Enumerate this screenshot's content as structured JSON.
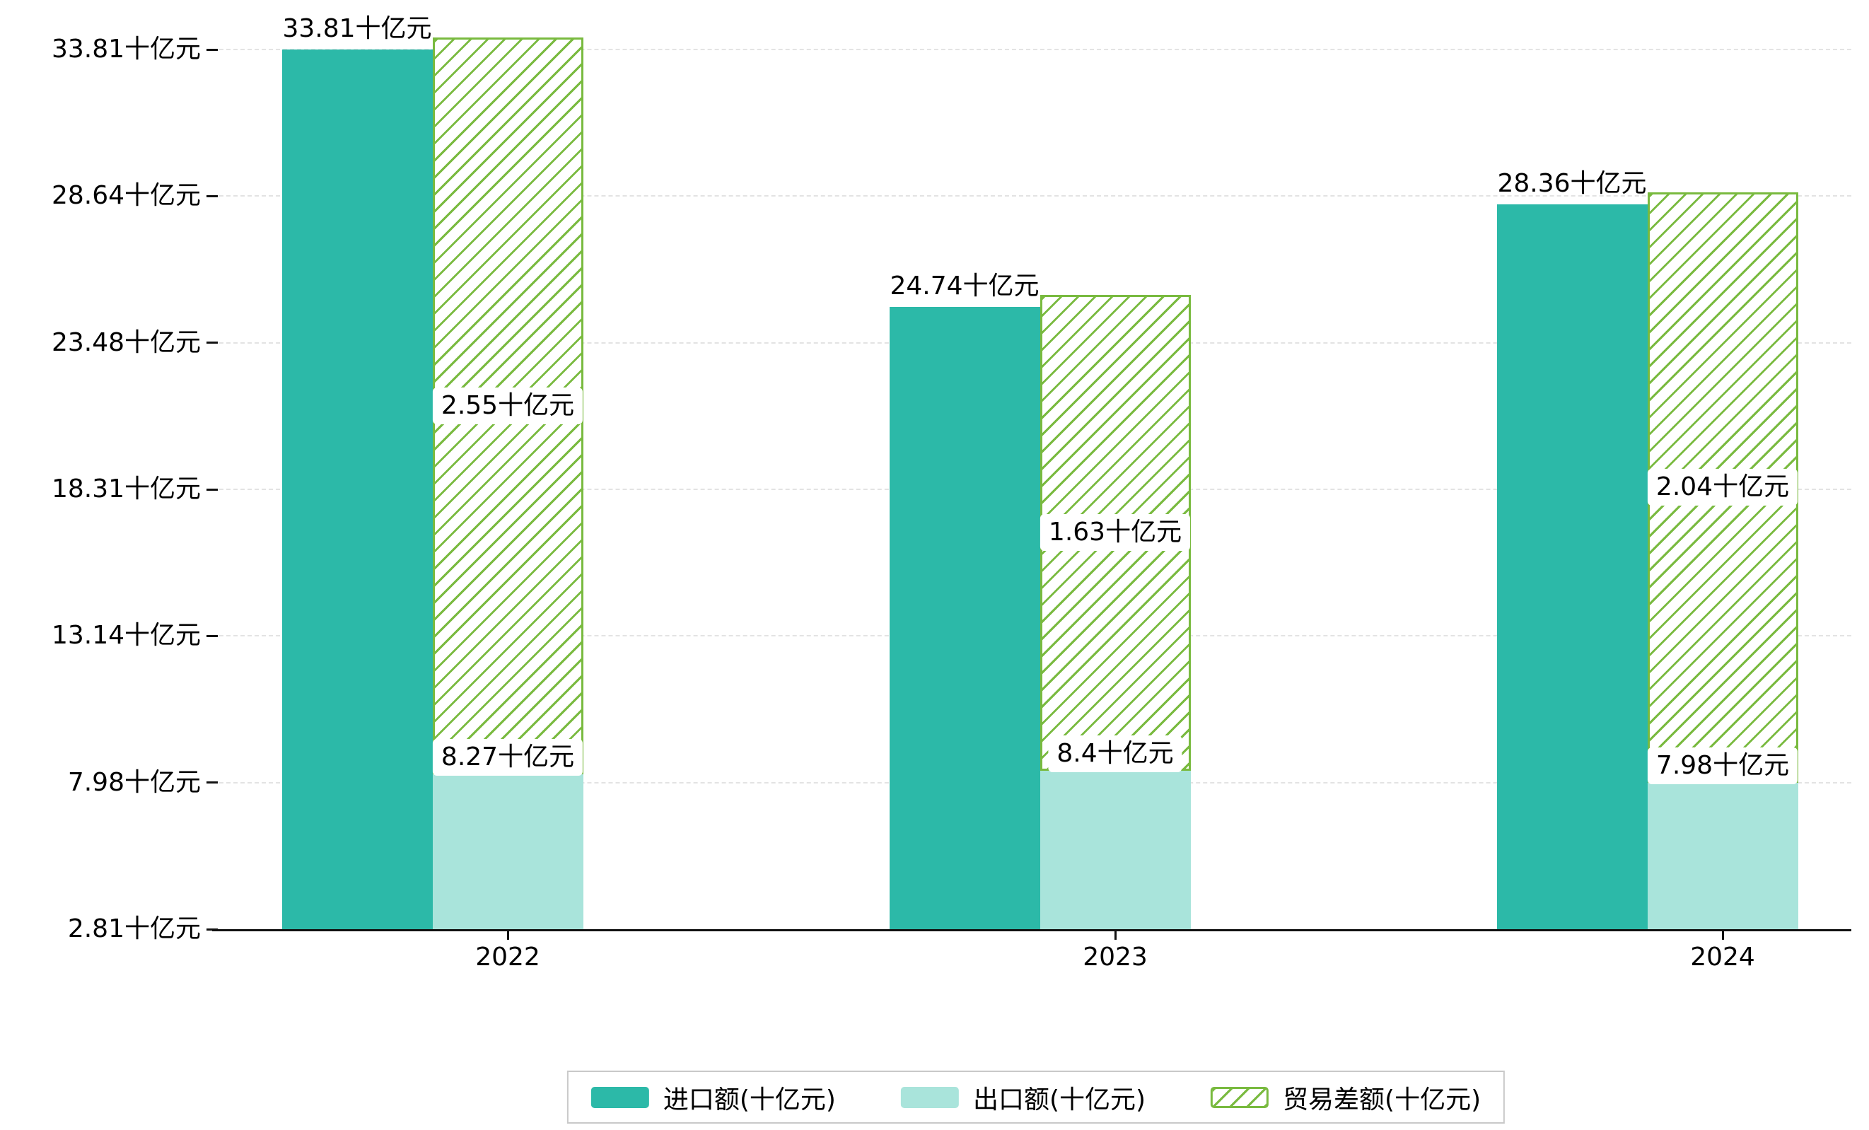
{
  "chart_data": {
    "type": "bar",
    "categories": [
      "2022",
      "2023",
      "2024"
    ],
    "series": [
      {
        "name": "进口额(十亿元)",
        "style": "solid",
        "color": "#2CB9A8",
        "values": [
          33.81,
          24.74,
          28.36
        ],
        "data_labels": [
          "33.81十亿元",
          "24.74十亿元",
          "28.36十亿元"
        ]
      },
      {
        "name": "出口额(十亿元)",
        "style": "solid",
        "color": "#A9E4DB",
        "values": [
          8.27,
          8.4,
          7.98
        ],
        "data_labels": [
          "8.27十亿元",
          "8.4十亿元",
          "7.98十亿元"
        ]
      },
      {
        "name": "贸易差额(十亿元)",
        "style": "hatched",
        "color": "#79BA3F",
        "values": [
          2.55,
          1.63,
          2.04
        ],
        "data_labels": [
          "2.55十亿元",
          "1.63十亿元",
          "2.04十亿元"
        ]
      }
    ],
    "y_axis": {
      "min": 2.81,
      "max": 33.81,
      "tick_values": [
        2.81,
        7.98,
        13.14,
        18.31,
        23.48,
        28.64,
        33.81
      ],
      "tick_labels": [
        "2.81十亿元",
        "7.98十亿元",
        "13.14十亿元",
        "18.31十亿元",
        "23.48十亿元",
        "28.64十亿元",
        "33.81十亿元"
      ]
    },
    "x_axis": {
      "tick_labels": [
        "2022",
        "2023",
        "2024"
      ]
    },
    "grid": "horizontal-dashed",
    "legend": {
      "position": "bottom-center",
      "items": [
        "进口额(十亿元)",
        "出口额(十亿元)",
        "贸易差额(十亿元)"
      ]
    },
    "colors": {
      "import_bar": "#2CB9A8",
      "export_bar": "#A9E4DB",
      "trade_balance_hatch": "#79BA3F",
      "grid_line": "#E3E3E3",
      "axis_line": "#111111",
      "text": "#000000",
      "label_background": "#FFFFFF",
      "legend_border": "#C9C9C9",
      "background": "#FFFFFF"
    }
  }
}
